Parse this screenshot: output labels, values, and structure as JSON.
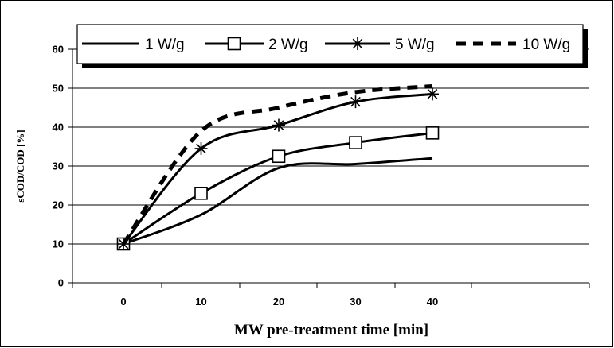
{
  "chart_data": {
    "type": "line",
    "title": "",
    "xlabel": "MW pre-treatment time [min]",
    "ylabel": "sCOD/COD [%]",
    "x": [
      0,
      10,
      20,
      30,
      40
    ],
    "x_ticks": [
      "0",
      "10",
      "20",
      "30",
      "40"
    ],
    "ylim": [
      0,
      60
    ],
    "y_ticks": [
      "0",
      "10",
      "20",
      "30",
      "40",
      "50",
      "60"
    ],
    "grid": "horizontal",
    "legend_position": "top",
    "series": [
      {
        "name": "1 W/g",
        "values": [
          10,
          17.5,
          29.5,
          30.5,
          32
        ],
        "marker": "none",
        "dash": "solid",
        "color": "#000000"
      },
      {
        "name": "2 W/g",
        "values": [
          10,
          23,
          32.5,
          36,
          38.5
        ],
        "marker": "square",
        "dash": "solid",
        "color": "#000000"
      },
      {
        "name": "5 W/g",
        "values": [
          10,
          34.5,
          40.5,
          46.5,
          48.5
        ],
        "marker": "star",
        "dash": "solid",
        "color": "#000000"
      },
      {
        "name": "10 W/g",
        "values": [
          10,
          39,
          45,
          49,
          50.5
        ],
        "marker": "none",
        "dash": "dashed",
        "color": "#000000"
      }
    ]
  }
}
